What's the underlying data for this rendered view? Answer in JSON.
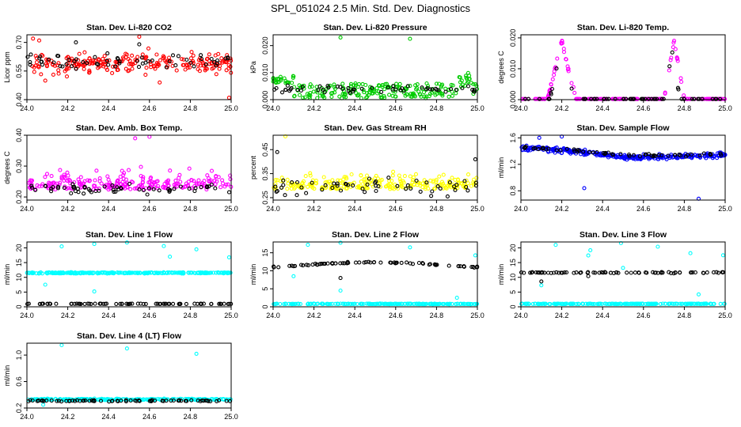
{
  "figure": {
    "title": "SPL_051024  2.5 Min. Std. Dev. Diagnostics"
  },
  "chart_data": [
    {
      "type": "scatter",
      "title": "Stan. Dev. Li-820 CO2",
      "xlabel": "",
      "ylabel": "Licor ppm",
      "xlim": [
        24.0,
        25.0
      ],
      "ylim": [
        0.4,
        0.74
      ],
      "xticks": [
        "24.0",
        "24.2",
        "24.4",
        "24.6",
        "24.8",
        "25.0"
      ],
      "yticks": [
        "0.40",
        "0.55",
        "0.70"
      ],
      "series": [
        {
          "name": "primary",
          "color": "#ff0000",
          "pattern": "band",
          "center": 0.59,
          "spread": 0.045,
          "n": 230,
          "seed": 11,
          "outliers": [
            [
              24.03,
              0.72
            ],
            [
              24.06,
              0.71
            ],
            [
              24.55,
              0.73
            ],
            [
              24.65,
              0.49
            ],
            [
              24.99,
              0.41
            ],
            [
              24.09,
              0.5
            ]
          ]
        },
        {
          "name": "secondary",
          "color": "#000000",
          "pattern": "band",
          "center": 0.6,
          "spread": 0.035,
          "n": 60,
          "seed": 12,
          "outliers": [
            [
              24.24,
              0.7
            ],
            [
              24.55,
              0.69
            ]
          ]
        }
      ]
    },
    {
      "type": "scatter",
      "title": "Stan. Dev. Li-820 Pressure",
      "xlabel": "",
      "ylabel": "kPa",
      "xlim": [
        24.0,
        25.0
      ],
      "ylim": [
        0.0,
        0.024
      ],
      "xticks": [
        "24.0",
        "24.2",
        "24.4",
        "24.6",
        "24.8",
        "25.0"
      ],
      "yticks": [
        "0.000",
        "0.010",
        "0.020"
      ],
      "series": [
        {
          "name": "primary",
          "color": "#00cc00",
          "pattern": "pressure",
          "n": 240,
          "seed": 21,
          "outliers": [
            [
              24.33,
              0.023
            ],
            [
              24.67,
              0.0225
            ]
          ]
        },
        {
          "name": "secondary",
          "color": "#000000",
          "pattern": "lowband",
          "center": 0.004,
          "spread": 0.002,
          "n": 55,
          "seed": 22,
          "outliers": []
        }
      ]
    },
    {
      "type": "scatter",
      "title": "Stan. Dev. Li-820 Temp.",
      "xlabel": "",
      "ylabel": "degrees C",
      "xlim": [
        24.0,
        25.0
      ],
      "ylim": [
        0.0,
        0.021
      ],
      "xticks": [
        "24.0",
        "24.2",
        "24.4",
        "24.6",
        "24.8",
        "25.0"
      ],
      "yticks": [
        "0.000",
        "0.010",
        "0.020"
      ],
      "series": [
        {
          "name": "primary",
          "color": "#ff00ff",
          "pattern": "peaks",
          "peaks": [
            [
              24.2,
              0.019,
              0.07
            ],
            [
              24.75,
              0.019,
              0.05
            ]
          ],
          "n": 200,
          "seed": 31,
          "outliers": []
        },
        {
          "name": "secondary",
          "color": "#000000",
          "pattern": "peaks",
          "peaks": [
            [
              24.2,
              0.017,
              0.06
            ],
            [
              24.74,
              0.016,
              0.04
            ]
          ],
          "n": 60,
          "seed": 32,
          "outliers": []
        }
      ]
    },
    {
      "type": "scatter",
      "title": "Stan. Dev. Amb. Box Temp.",
      "xlabel": "",
      "ylabel": "degrees C",
      "xlim": [
        24.0,
        25.0
      ],
      "ylim": [
        0.19,
        0.4
      ],
      "xticks": [
        "24.0",
        "24.2",
        "24.4",
        "24.6",
        "24.8",
        "25.0"
      ],
      "yticks": [
        "0.20",
        "0.30",
        "0.40"
      ],
      "series": [
        {
          "name": "primary",
          "color": "#ff00ff",
          "pattern": "skew",
          "center": 0.245,
          "spread": 0.035,
          "n": 240,
          "seed": 41,
          "outliers": [
            [
              24.6,
              0.395
            ],
            [
              24.53,
              0.39
            ]
          ]
        },
        {
          "name": "secondary",
          "color": "#000000",
          "pattern": "band",
          "center": 0.225,
          "spread": 0.012,
          "n": 60,
          "seed": 42,
          "outliers": []
        }
      ]
    },
    {
      "type": "scatter",
      "title": "Stan. Dev. Gas Stream RH",
      "xlabel": "",
      "ylabel": "percent",
      "xlim": [
        24.0,
        25.0
      ],
      "ylim": [
        0.24,
        0.51
      ],
      "xticks": [
        "24.0",
        "24.2",
        "24.4",
        "24.6",
        "24.8",
        "25.0"
      ],
      "yticks": [
        "0.25",
        "0.35",
        "0.45"
      ],
      "series": [
        {
          "name": "primary",
          "color": "#ffff00",
          "pattern": "skew",
          "center": 0.31,
          "spread": 0.04,
          "n": 240,
          "seed": 51,
          "outliers": [
            [
              24.06,
              0.505
            ]
          ]
        },
        {
          "name": "secondary",
          "color": "#000000",
          "pattern": "band",
          "center": 0.3,
          "spread": 0.03,
          "n": 55,
          "seed": 52,
          "outliers": [
            [
              24.02,
              0.44
            ],
            [
              24.99,
              0.41
            ]
          ]
        }
      ]
    },
    {
      "type": "scatter",
      "title": "Stan. Dev. Sample Flow",
      "xlabel": "",
      "ylabel": "ml/min",
      "xlim": [
        24.0,
        25.0
      ],
      "ylim": [
        0.66,
        1.64
      ],
      "xticks": [
        "24.0",
        "24.2",
        "24.4",
        "24.6",
        "24.8",
        "25.0"
      ],
      "yticks": [
        "0.8",
        "1.2",
        "1.6"
      ],
      "series": [
        {
          "name": "primary",
          "color": "#0000ff",
          "pattern": "wave",
          "center": 1.36,
          "amp": 0.08,
          "spread": 0.06,
          "n": 300,
          "seed": 61,
          "outliers": [
            [
              24.31,
              0.84
            ],
            [
              24.87,
              0.68
            ],
            [
              24.2,
              1.62
            ],
            [
              24.09,
              1.6
            ]
          ]
        },
        {
          "name": "secondary",
          "color": "#000000",
          "pattern": "wave",
          "center": 1.38,
          "amp": 0.07,
          "spread": 0.04,
          "n": 60,
          "seed": 62,
          "outliers": []
        }
      ]
    },
    {
      "type": "scatter",
      "title": "Stan. Dev. Line 1 Flow",
      "xlabel": "",
      "ylabel": "ml/min",
      "xlim": [
        24.0,
        25.0
      ],
      "ylim": [
        0.0,
        22.0
      ],
      "xticks": [
        "24.0",
        "24.2",
        "24.4",
        "24.6",
        "24.8",
        "25.0"
      ],
      "yticks": [
        "0",
        "5",
        "10",
        "15",
        "20"
      ],
      "series": [
        {
          "name": "primary",
          "color": "#00ffff",
          "pattern": "tight",
          "center": 11.5,
          "spread": 0.35,
          "n": 260,
          "seed": 71,
          "outliers": [
            [
              24.17,
              20.5
            ],
            [
              24.33,
              21.3
            ],
            [
              24.49,
              21.8
            ],
            [
              24.67,
              20.6
            ],
            [
              24.83,
              19.5
            ],
            [
              24.99,
              16.8
            ],
            [
              24.09,
              7.5
            ],
            [
              24.33,
              5.2
            ],
            [
              24.7,
              17.0
            ]
          ]
        },
        {
          "name": "secondary",
          "color": "#000000",
          "pattern": "tight",
          "center": 1.0,
          "spread": 0.12,
          "n": 75,
          "seed": 72,
          "outliers": []
        }
      ]
    },
    {
      "type": "scatter",
      "title": "Stan. Dev. Line 2 Flow",
      "xlabel": "",
      "ylabel": "ml/min",
      "xlim": [
        24.0,
        25.0
      ],
      "ylim": [
        0.0,
        18.0
      ],
      "xticks": [
        "24.0",
        "24.2",
        "24.4",
        "24.6",
        "24.8",
        "25.0"
      ],
      "yticks": [
        "0",
        "5",
        "10",
        "15"
      ],
      "series": [
        {
          "name": "primary",
          "color": "#00ffff",
          "pattern": "tight",
          "center": 0.8,
          "spread": 0.15,
          "n": 220,
          "seed": 81,
          "outliers": [
            [
              24.33,
              4.5
            ],
            [
              24.17,
              17.2
            ],
            [
              24.33,
              17.8
            ],
            [
              24.67,
              16.5
            ],
            [
              24.99,
              14.3
            ],
            [
              24.1,
              8.5
            ],
            [
              24.9,
              2.5
            ]
          ]
        },
        {
          "name": "secondary",
          "color": "#000000",
          "pattern": "arc",
          "center": 11.0,
          "amp": 1.3,
          "spread": 0.3,
          "n": 75,
          "seed": 82,
          "outliers": [
            [
              24.33,
              8.0
            ]
          ]
        }
      ]
    },
    {
      "type": "scatter",
      "title": "Stan. Dev. Line 3 Flow",
      "xlabel": "",
      "ylabel": "ml/min",
      "xlim": [
        24.0,
        25.0
      ],
      "ylim": [
        0.0,
        22.0
      ],
      "xticks": [
        "24.0",
        "24.2",
        "24.4",
        "24.6",
        "24.8",
        "25.0"
      ],
      "yticks": [
        "0",
        "5",
        "10",
        "15",
        "20"
      ],
      "series": [
        {
          "name": "primary",
          "color": "#00ffff",
          "pattern": "tight",
          "center": 1.0,
          "spread": 0.15,
          "n": 220,
          "seed": 91,
          "outliers": [
            [
              24.17,
              21.0
            ],
            [
              24.33,
              17.4
            ],
            [
              24.34,
              19.2
            ],
            [
              24.49,
              21.6
            ],
            [
              24.67,
              20.4
            ],
            [
              24.83,
              18.2
            ],
            [
              24.99,
              17.5
            ],
            [
              24.1,
              7.3
            ],
            [
              24.87,
              4.2
            ],
            [
              24.5,
              13.2
            ]
          ]
        },
        {
          "name": "secondary",
          "color": "#000000",
          "pattern": "tight",
          "center": 11.6,
          "spread": 0.35,
          "n": 75,
          "seed": 92,
          "outliers": [
            [
              24.33,
              10.4
            ],
            [
              24.1,
              8.6
            ]
          ]
        }
      ]
    },
    {
      "type": "scatter",
      "title": "Stan. Dev. Line 4 (LT) Flow",
      "xlabel": "",
      "ylabel": "ml/min",
      "xlim": [
        24.0,
        25.0
      ],
      "ylim": [
        0.2,
        1.18
      ],
      "xticks": [
        "24.0",
        "24.2",
        "24.4",
        "24.6",
        "24.8",
        "25.0"
      ],
      "yticks": [
        "0.2",
        "0.6",
        "1.0"
      ],
      "series": [
        {
          "name": "primary",
          "color": "#00ffff",
          "pattern": "tight",
          "center": 0.33,
          "spread": 0.018,
          "n": 260,
          "seed": 101,
          "outliers": [
            [
              24.17,
              1.15
            ],
            [
              24.49,
              1.1
            ],
            [
              24.83,
              1.02
            ],
            [
              24.08,
              0.25
            ]
          ]
        },
        {
          "name": "secondary",
          "color": "#000000",
          "pattern": "tight",
          "center": 0.31,
          "spread": 0.015,
          "n": 75,
          "seed": 102,
          "outliers": []
        }
      ]
    }
  ]
}
